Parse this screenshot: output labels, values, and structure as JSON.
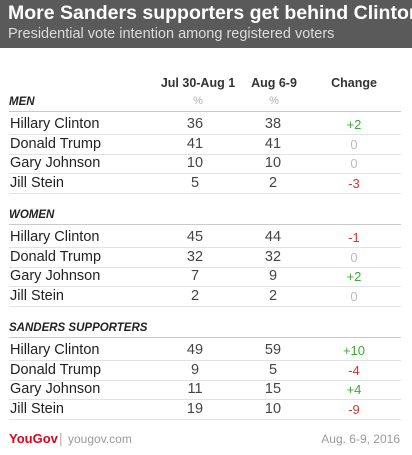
{
  "header": {
    "title": "More Sanders supporters get behind Clinton",
    "subtitle": "Presidential vote intention among registered voters"
  },
  "columns": {
    "period1": "Jul 30-Aug 1",
    "period2": "Aug 6-9",
    "change": "Change",
    "unit": "%"
  },
  "colors": {
    "header_bg": "#5a5a5a",
    "positive": "#3aaa35",
    "negative": "#e2302e",
    "zero": "#bdbdbd",
    "brand": "#e3001b"
  },
  "chart_data": {
    "type": "table",
    "title": "More Sanders supporters get behind Clinton",
    "subtitle": "Presidential vote intention among registered voters",
    "columns": [
      "Jul 30-Aug 1",
      "Aug 6-9",
      "Change"
    ],
    "unit": "%",
    "sections": [
      {
        "label": "MEN",
        "rows": [
          {
            "name": "Hillary Clinton",
            "v1": "36",
            "v2": "38",
            "change": "+2",
            "sign": "positive"
          },
          {
            "name": "Donald Trump",
            "v1": "41",
            "v2": "41",
            "change": "0",
            "sign": "zero"
          },
          {
            "name": "Gary Johnson",
            "v1": "10",
            "v2": "10",
            "change": "0",
            "sign": "zero"
          },
          {
            "name": "Jill Stein",
            "v1": "5",
            "v2": "2",
            "change": "-3",
            "sign": "negative"
          }
        ]
      },
      {
        "label": "WOMEN",
        "rows": [
          {
            "name": "Hillary Clinton",
            "v1": "45",
            "v2": "44",
            "change": "-1",
            "sign": "negative"
          },
          {
            "name": "Donald Trump",
            "v1": "32",
            "v2": "32",
            "change": "0",
            "sign": "zero"
          },
          {
            "name": "Gary Johnson",
            "v1": "7",
            "v2": "9",
            "change": "+2",
            "sign": "positive"
          },
          {
            "name": "Jill Stein",
            "v1": "2",
            "v2": "2",
            "change": "0",
            "sign": "zero"
          }
        ]
      },
      {
        "label": "SANDERS SUPPORTERS",
        "rows": [
          {
            "name": "Hillary Clinton",
            "v1": "49",
            "v2": "59",
            "change": "+10",
            "sign": "positive"
          },
          {
            "name": "Donald Trump",
            "v1": "9",
            "v2": "5",
            "change": "-4",
            "sign": "negative"
          },
          {
            "name": "Gary Johnson",
            "v1": "11",
            "v2": "15",
            "change": "+4",
            "sign": "positive"
          },
          {
            "name": "Jill Stein",
            "v1": "19",
            "v2": "10",
            "change": "-9",
            "sign": "negative"
          }
        ]
      }
    ]
  },
  "footer": {
    "logo": "YouGov",
    "separator": "|",
    "site": "yougov.com",
    "date": "Aug. 6-9, 2016"
  }
}
